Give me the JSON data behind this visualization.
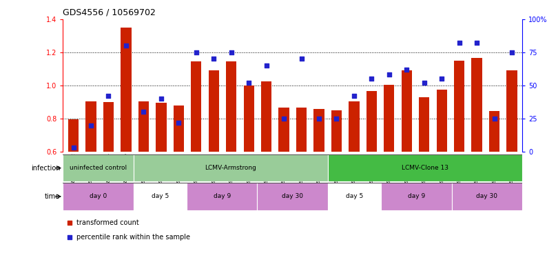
{
  "title": "GDS4556 / 10569702",
  "samples": [
    "GSM1083152",
    "GSM1083153",
    "GSM1083154",
    "GSM1083155",
    "GSM1083156",
    "GSM1083157",
    "GSM1083158",
    "GSM1083159",
    "GSM1083160",
    "GSM1083161",
    "GSM1083162",
    "GSM1083163",
    "GSM1083164",
    "GSM1083165",
    "GSM1083166",
    "GSM1083167",
    "GSM1083168",
    "GSM1083169",
    "GSM1083170",
    "GSM1083171",
    "GSM1083172",
    "GSM1083173",
    "GSM1083174",
    "GSM1083175",
    "GSM1083176",
    "GSM1083177"
  ],
  "bar_values": [
    0.795,
    0.905,
    0.9,
    1.35,
    0.905,
    0.895,
    0.88,
    1.145,
    1.09,
    1.145,
    0.998,
    1.025,
    0.865,
    0.865,
    0.858,
    0.85,
    0.905,
    0.967,
    1.005,
    1.09,
    0.93,
    0.975,
    1.15,
    1.165,
    0.845,
    1.09
  ],
  "blue_values": [
    3,
    20,
    42,
    80,
    30,
    40,
    22,
    75,
    70,
    75,
    52,
    65,
    25,
    70,
    25,
    25,
    42,
    55,
    58,
    62,
    52,
    55,
    82,
    82,
    25,
    75
  ],
  "bar_color": "#cc2200",
  "blue_color": "#2222cc",
  "ylim_left": [
    0.6,
    1.4
  ],
  "ylim_right": [
    0,
    100
  ],
  "yticks_left": [
    0.6,
    0.8,
    1.0,
    1.2,
    1.4
  ],
  "yticks_right": [
    0,
    25,
    50,
    75,
    100
  ],
  "ytick_labels_right": [
    "0",
    "25",
    "50",
    "75",
    "100%"
  ],
  "gridlines": [
    0.8,
    1.0,
    1.2
  ],
  "infection_groups": [
    {
      "label": "uninfected control",
      "start": 0,
      "end": 4,
      "color": "#99cc99"
    },
    {
      "label": "LCMV-Armstrong",
      "start": 4,
      "end": 15,
      "color": "#99cc99"
    },
    {
      "label": "LCMV-Clone 13",
      "start": 15,
      "end": 26,
      "color": "#44bb44"
    }
  ],
  "time_groups": [
    {
      "label": "day 0",
      "start": 0,
      "end": 4,
      "color": "#cc88cc"
    },
    {
      "label": "day 5",
      "start": 4,
      "end": 7,
      "color": "#ffffff"
    },
    {
      "label": "day 9",
      "start": 7,
      "end": 11,
      "color": "#cc88cc"
    },
    {
      "label": "day 30",
      "start": 11,
      "end": 15,
      "color": "#cc88cc"
    },
    {
      "label": "day 5",
      "start": 15,
      "end": 18,
      "color": "#ffffff"
    },
    {
      "label": "day 9",
      "start": 18,
      "end": 22,
      "color": "#cc88cc"
    },
    {
      "label": "day 30",
      "start": 22,
      "end": 26,
      "color": "#cc88cc"
    }
  ],
  "legend_items": [
    {
      "label": "transformed count",
      "color": "#cc2200"
    },
    {
      "label": "percentile rank within the sample",
      "color": "#2222cc"
    }
  ],
  "bg_color": "#ffffff",
  "plot_bg_color": "#ffffff"
}
